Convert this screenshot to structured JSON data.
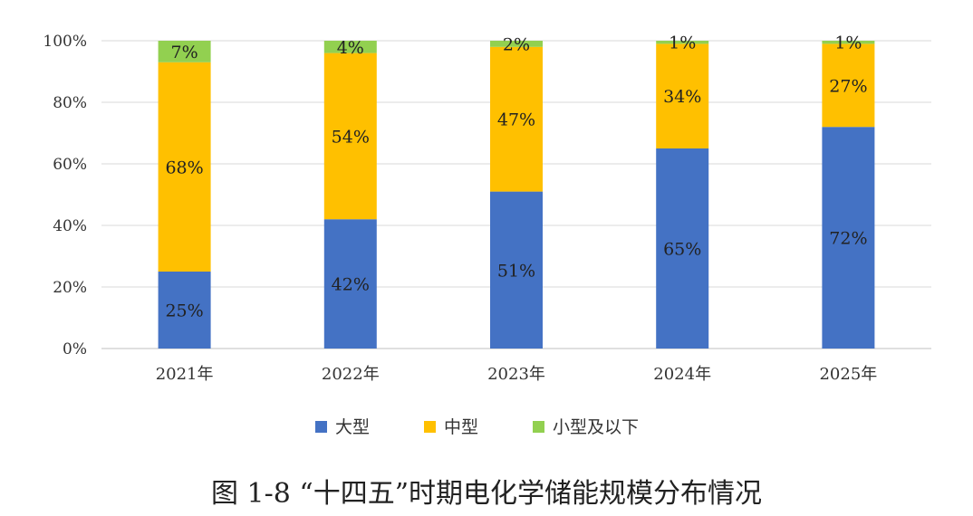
{
  "chart_data": {
    "type": "bar",
    "stacked": true,
    "categories": [
      "2021年",
      "2022年",
      "2023年",
      "2024年",
      "2025年"
    ],
    "series": [
      {
        "name": "大型",
        "values": [
          25,
          42,
          51,
          65,
          72
        ],
        "labels": [
          "25%",
          "42%",
          "51%",
          "65%",
          "72%"
        ],
        "color": "#4472C4"
      },
      {
        "name": "中型",
        "values": [
          68,
          54,
          47,
          34,
          27
        ],
        "labels": [
          "68%",
          "54%",
          "47%",
          "34%",
          "27%"
        ],
        "color": "#FFC000"
      },
      {
        "name": "小型及以下",
        "values": [
          7,
          4,
          2,
          1,
          1
        ],
        "labels": [
          "7%",
          "4%",
          "2%",
          "1%",
          "1%"
        ],
        "color": "#92D050"
      }
    ],
    "yticks": [
      "0%",
      "20%",
      "40%",
      "60%",
      "80%",
      "100%"
    ],
    "ylim": [
      0,
      100
    ],
    "grid": true,
    "legend": "bottom-center"
  },
  "caption": "图 1-8 “十四五”时期电化学储能规模分布情况"
}
